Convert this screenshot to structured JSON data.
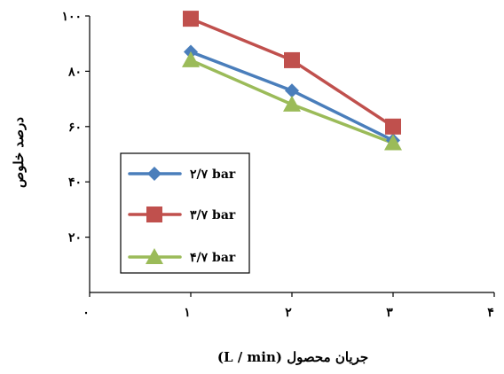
{
  "chart_data": {
    "type": "line",
    "xlabel": "جریان محصول (L / min)",
    "ylabel": "درصد خلوص",
    "xlim": [
      0,
      4
    ],
    "ylim": [
      0,
      100
    ],
    "x_ticks": [
      0,
      1,
      2,
      3,
      4
    ],
    "x_tick_labels": [
      "۰",
      "۱",
      "۲",
      "۳",
      "۴"
    ],
    "y_ticks": [
      20,
      40,
      60,
      80,
      100
    ],
    "y_tick_labels": [
      "۲۰",
      "۴۰",
      "۶۰",
      "۸۰",
      "۱۰۰"
    ],
    "grid": false,
    "legend_position": "left-center, boxed",
    "series": [
      {
        "name": "۲/۷ bar",
        "color": "#4A7EBB",
        "marker": "diamond",
        "x": [
          1,
          2,
          3
        ],
        "y": [
          87,
          73,
          55
        ]
      },
      {
        "name": "۳/۷ bar",
        "color": "#C0504D",
        "marker": "square",
        "x": [
          1,
          2,
          3
        ],
        "y": [
          99,
          84,
          60
        ]
      },
      {
        "name": "۴/۷ bar",
        "color": "#9BBB59",
        "marker": "triangle",
        "x": [
          1,
          2,
          3
        ],
        "y": [
          84,
          68,
          54
        ]
      }
    ]
  }
}
